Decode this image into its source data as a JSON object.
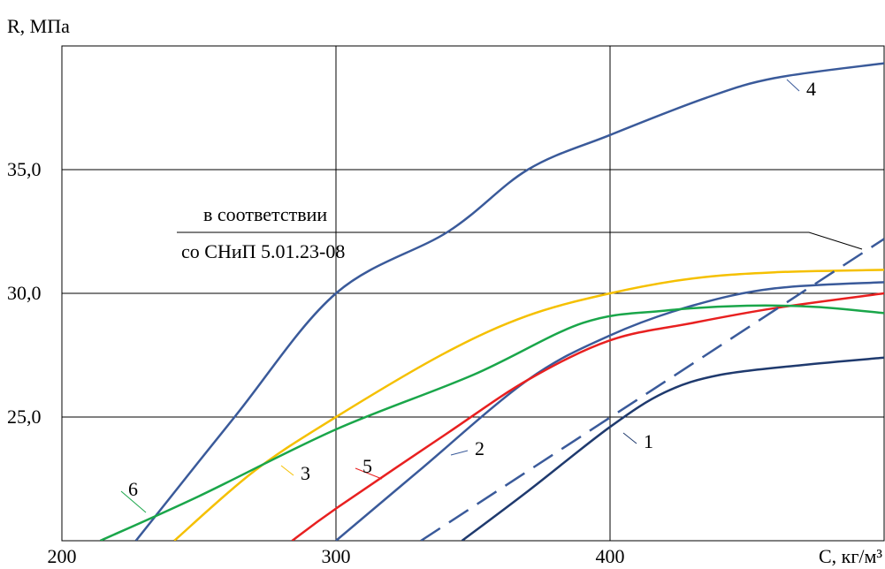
{
  "chart_data": {
    "type": "line",
    "ylabel": "R, МПа",
    "xlabel": "C, кг/м³",
    "xlim": [
      200,
      500
    ],
    "ylim": [
      20,
      40
    ],
    "xticks": [
      200,
      300,
      400
    ],
    "yticks": [
      {
        "value": 25,
        "label": "25,0"
      },
      {
        "value": 30,
        "label": "30,0"
      },
      {
        "value": 35,
        "label": "35,0"
      }
    ],
    "grid": true,
    "annotation": [
      "в соответствии",
      "со СНиП 5.01.23-08"
    ],
    "series": [
      {
        "name": "1",
        "color": "#1f3a6e",
        "x": [
          346,
          370,
          400,
          420,
          440,
          470,
          500
        ],
        "values": [
          20,
          22,
          24.6,
          26,
          26.7,
          27.1,
          27.4
        ]
      },
      {
        "name": "2",
        "color": "#3a5a9a",
        "x": [
          300,
          330,
          370,
          400,
          430,
          460,
          500
        ],
        "values": [
          20,
          22.8,
          26.5,
          28.3,
          29.5,
          30.2,
          30.45
        ]
      },
      {
        "name": "3",
        "color": "#f5c000",
        "x": [
          241,
          270,
          300,
          340,
          370,
          400,
          430,
          460,
          500
        ],
        "values": [
          20,
          22.8,
          25,
          27.6,
          29.1,
          30,
          30.6,
          30.85,
          30.95
        ]
      },
      {
        "name": "4",
        "color": "#3a5a9a",
        "x": [
          227,
          263,
          300,
          341,
          370,
          400,
          435,
          460,
          500
        ],
        "values": [
          20,
          25,
          30,
          32.5,
          35,
          36.4,
          37.9,
          38.7,
          39.3
        ]
      },
      {
        "name": "5",
        "color": "#e82020",
        "x": [
          284,
          300,
          340,
          370,
          400,
          430,
          460,
          500
        ],
        "values": [
          20,
          21.3,
          24.3,
          26.5,
          28.1,
          28.8,
          29.4,
          30
        ]
      },
      {
        "name": "6",
        "color": "#1aa64a",
        "x": [
          214,
          250,
          300,
          350,
          390,
          420,
          450,
          475,
          500
        ],
        "values": [
          20,
          21.8,
          24.5,
          26.7,
          28.8,
          29.3,
          29.5,
          29.45,
          29.2
        ]
      },
      {
        "color": "#3a5a9a",
        "dashed": true,
        "x": [
          331,
          500
        ],
        "values": [
          20,
          32.2
        ]
      }
    ]
  }
}
